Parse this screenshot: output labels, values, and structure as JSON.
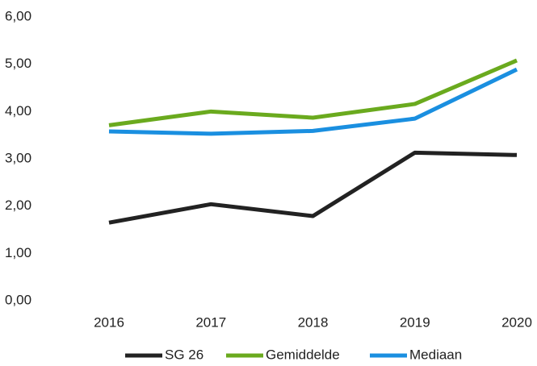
{
  "chart_data": {
    "type": "line",
    "categories": [
      "2016",
      "2017",
      "2018",
      "2019",
      "2020"
    ],
    "series": [
      {
        "name": "SG 26",
        "color": "#222222",
        "values": [
          1.65,
          2.04,
          1.79,
          3.13,
          3.08
        ]
      },
      {
        "name": "Gemiddelde",
        "color": "#6aaa1e",
        "values": [
          3.71,
          4.0,
          3.87,
          4.16,
          5.08
        ]
      },
      {
        "name": "Mediaan",
        "color": "#1a8fe0",
        "values": [
          3.58,
          3.53,
          3.59,
          3.85,
          4.89
        ]
      }
    ],
    "ylim": [
      0,
      6
    ],
    "yticks": [
      {
        "value": 0,
        "label": "0,00"
      },
      {
        "value": 1,
        "label": "1,00"
      },
      {
        "value": 2,
        "label": "2,00"
      },
      {
        "value": 3,
        "label": "3,00"
      },
      {
        "value": 4,
        "label": "4,00"
      },
      {
        "value": 5,
        "label": "5,00"
      },
      {
        "value": 6,
        "label": "6,00"
      }
    ],
    "grid": false,
    "legend": "bottom"
  }
}
